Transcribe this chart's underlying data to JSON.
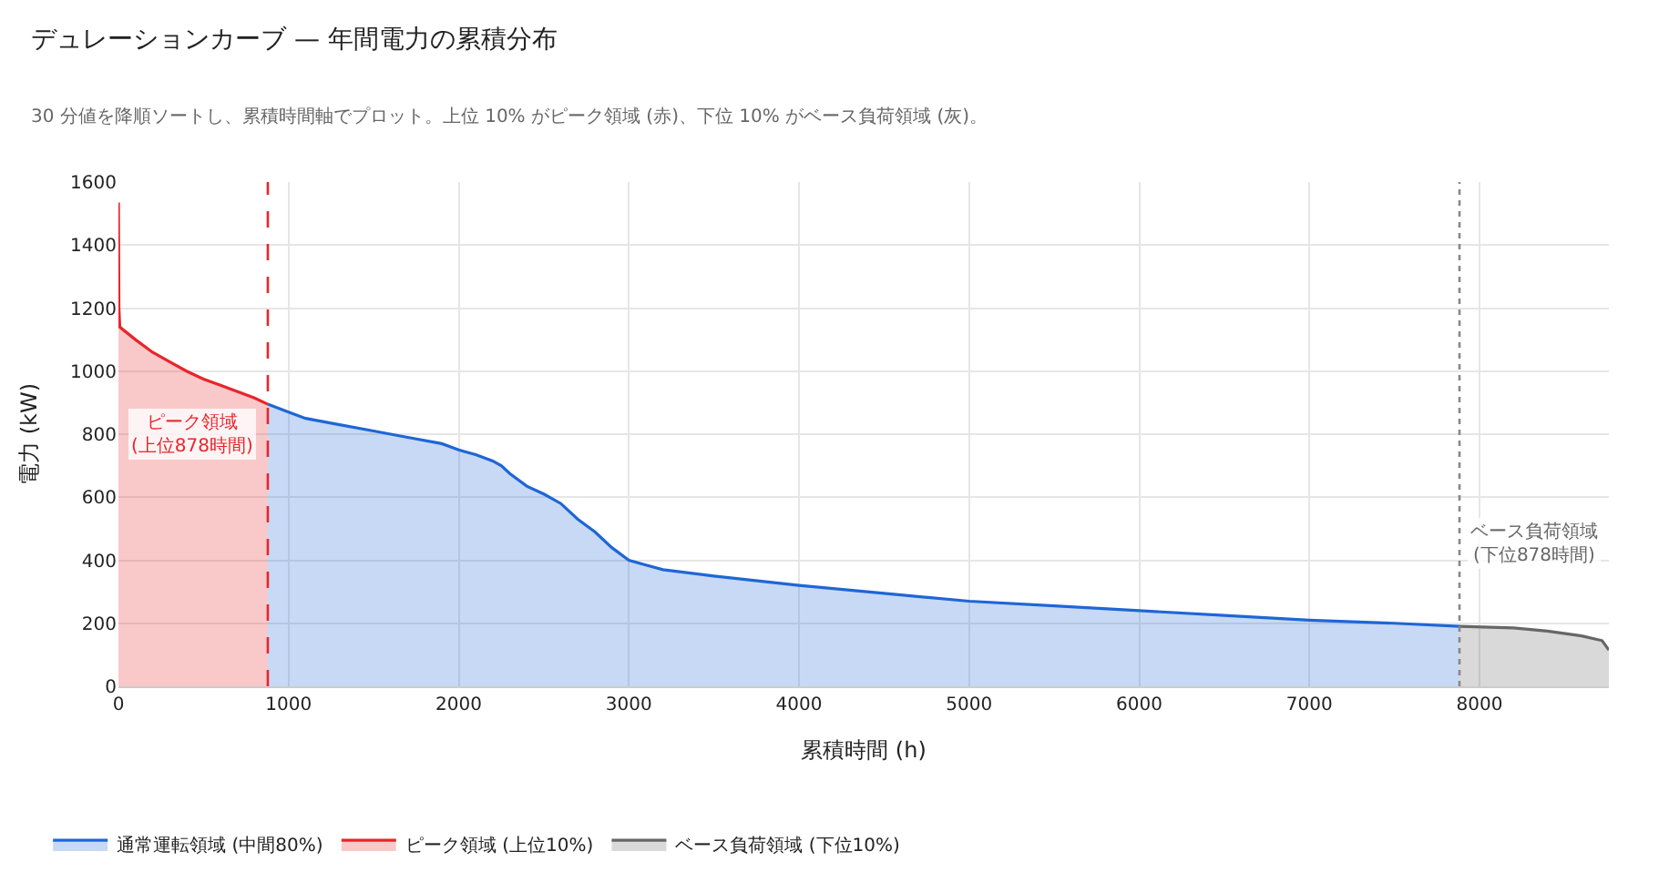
{
  "chart_data": {
    "type": "area",
    "title": "デュレーションカーブ — 年間電力の累積分布",
    "subtitle": "30 分値を降順ソートし、累積時間軸でプロット。上位 10% がピーク領域 (赤)、下位 10% がベース負荷領域 (灰)。",
    "xlabel": "累積時間 (h)",
    "ylabel": "電力 (kW)",
    "series": [
      {
        "name": "通常運転領域 (中間80%)",
        "color": "#1f66d6",
        "x": [
          878,
          1000,
          1100,
          1300,
          1500,
          1700,
          1900,
          2000,
          2100,
          2200,
          2250,
          2300,
          2400,
          2500,
          2600,
          2700,
          2800,
          2900,
          3000,
          3100,
          3200,
          3500,
          4000,
          4500,
          5000,
          5500,
          6000,
          6500,
          7000,
          7500,
          7882
        ],
        "values": [
          895,
          870,
          850,
          830,
          810,
          790,
          770,
          750,
          735,
          715,
          700,
          675,
          635,
          610,
          580,
          530,
          490,
          440,
          400,
          385,
          370,
          350,
          320,
          295,
          270,
          255,
          240,
          225,
          210,
          200,
          190
        ]
      },
      {
        "name": "ピーク領域 (上位10%)",
        "color": "#e8262b",
        "x": [
          0,
          3,
          8,
          100,
          200,
          300,
          400,
          500,
          600,
          700,
          800,
          878
        ],
        "values": [
          1535,
          1200,
          1140,
          1100,
          1060,
          1030,
          1000,
          975,
          955,
          935,
          915,
          895
        ]
      },
      {
        "name": "ベース負荷領域 (下位10%)",
        "color": "#666666",
        "x": [
          7882,
          8200,
          8400,
          8600,
          8720,
          8760
        ],
        "values": [
          190,
          185,
          175,
          160,
          145,
          115
        ]
      }
    ],
    "ref_lines": [
      {
        "axis": "x",
        "value": 878,
        "label": "ピーク領域\n(上位878時間)",
        "color": "#e8262b",
        "line_style": "dashed"
      },
      {
        "axis": "x",
        "value": 7882,
        "label": "ベース負荷領域\n(下位878時間)",
        "color": "#888888",
        "line_style": "dotted"
      }
    ],
    "xlim": [
      0,
      8760
    ],
    "xticks": [
      0,
      1000,
      2000,
      3000,
      4000,
      5000,
      6000,
      7000,
      8000
    ],
    "ylim": [
      0,
      1600
    ],
    "yticks": [
      0,
      200,
      400,
      600,
      800,
      1000,
      1200,
      1400,
      1600
    ],
    "grid": true,
    "legend": "bottom left"
  }
}
